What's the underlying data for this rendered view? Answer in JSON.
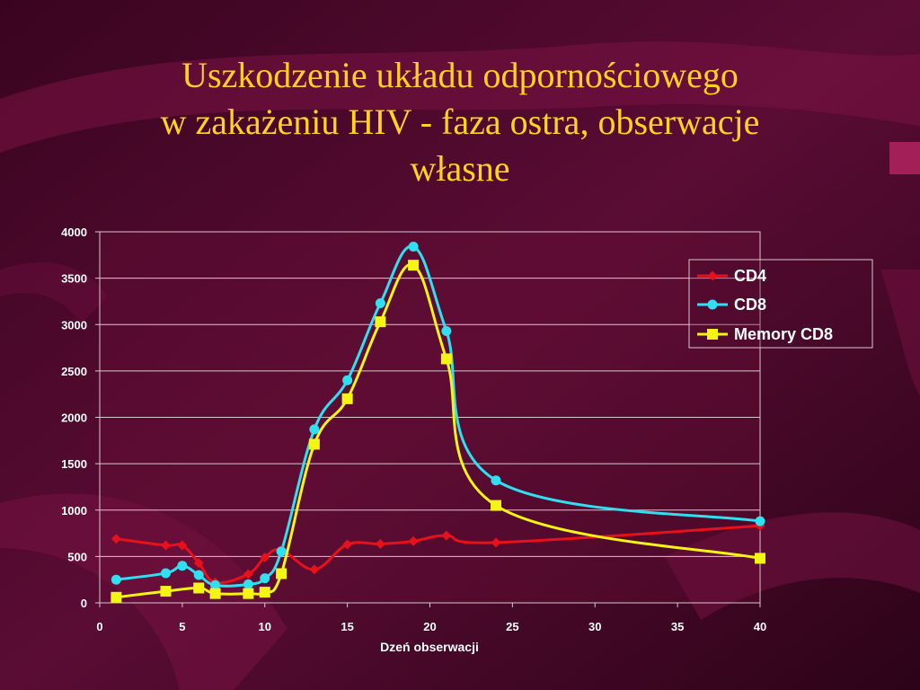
{
  "slide": {
    "title_lines": [
      "Uszkodzenie układu odpornościowego",
      "w zakażeniu HIV - faza ostra, obserwacje",
      "własne"
    ]
  },
  "colors": {
    "background": "#4a0a2a",
    "title": "#ffd21e",
    "cd4": "#e8101a",
    "cd8": "#2ee0f0",
    "memory_cd8": "#f5f514"
  },
  "chart_data": {
    "type": "line",
    "title": "",
    "xlabel": "Dzeń obserwacji",
    "ylabel": "",
    "xlim": [
      0,
      40
    ],
    "ylim": [
      0,
      4000
    ],
    "x_ticks": [
      0,
      5,
      10,
      15,
      20,
      25,
      30,
      35,
      40
    ],
    "y_ticks": [
      0,
      500,
      1000,
      1500,
      2000,
      2500,
      3000,
      3500,
      4000
    ],
    "grid": true,
    "legend_position": "top-right",
    "series": [
      {
        "name": "CD4",
        "marker": "diamond",
        "points": [
          [
            1,
            690
          ],
          [
            4,
            620
          ],
          [
            5,
            620
          ],
          [
            6,
            430
          ],
          [
            7,
            220
          ],
          [
            9,
            310
          ],
          [
            10,
            490
          ],
          [
            11,
            570
          ],
          [
            13,
            360
          ],
          [
            15,
            630
          ],
          [
            17,
            635
          ],
          [
            19,
            665
          ],
          [
            21,
            725
          ],
          [
            24,
            650
          ],
          [
            40,
            830
          ]
        ]
      },
      {
        "name": "CD8",
        "marker": "circle",
        "points": [
          [
            1,
            250
          ],
          [
            4,
            320
          ],
          [
            5,
            400
          ],
          [
            6,
            300
          ],
          [
            7,
            190
          ],
          [
            9,
            200
          ],
          [
            10,
            265
          ],
          [
            11,
            555
          ],
          [
            13,
            1870
          ],
          [
            15,
            2400
          ],
          [
            17,
            3230
          ],
          [
            19,
            3840
          ],
          [
            21,
            2930
          ],
          [
            24,
            1320
          ],
          [
            40,
            880
          ]
        ]
      },
      {
        "name": "Memory CD8",
        "marker": "square",
        "points": [
          [
            1,
            60
          ],
          [
            4,
            125
          ],
          [
            6,
            160
          ],
          [
            7,
            100
          ],
          [
            9,
            100
          ],
          [
            10,
            115
          ],
          [
            11,
            315
          ],
          [
            13,
            1710
          ],
          [
            15,
            2200
          ],
          [
            17,
            3030
          ],
          [
            19,
            3640
          ],
          [
            21,
            2630
          ],
          [
            24,
            1050
          ],
          [
            40,
            480
          ]
        ]
      }
    ]
  }
}
